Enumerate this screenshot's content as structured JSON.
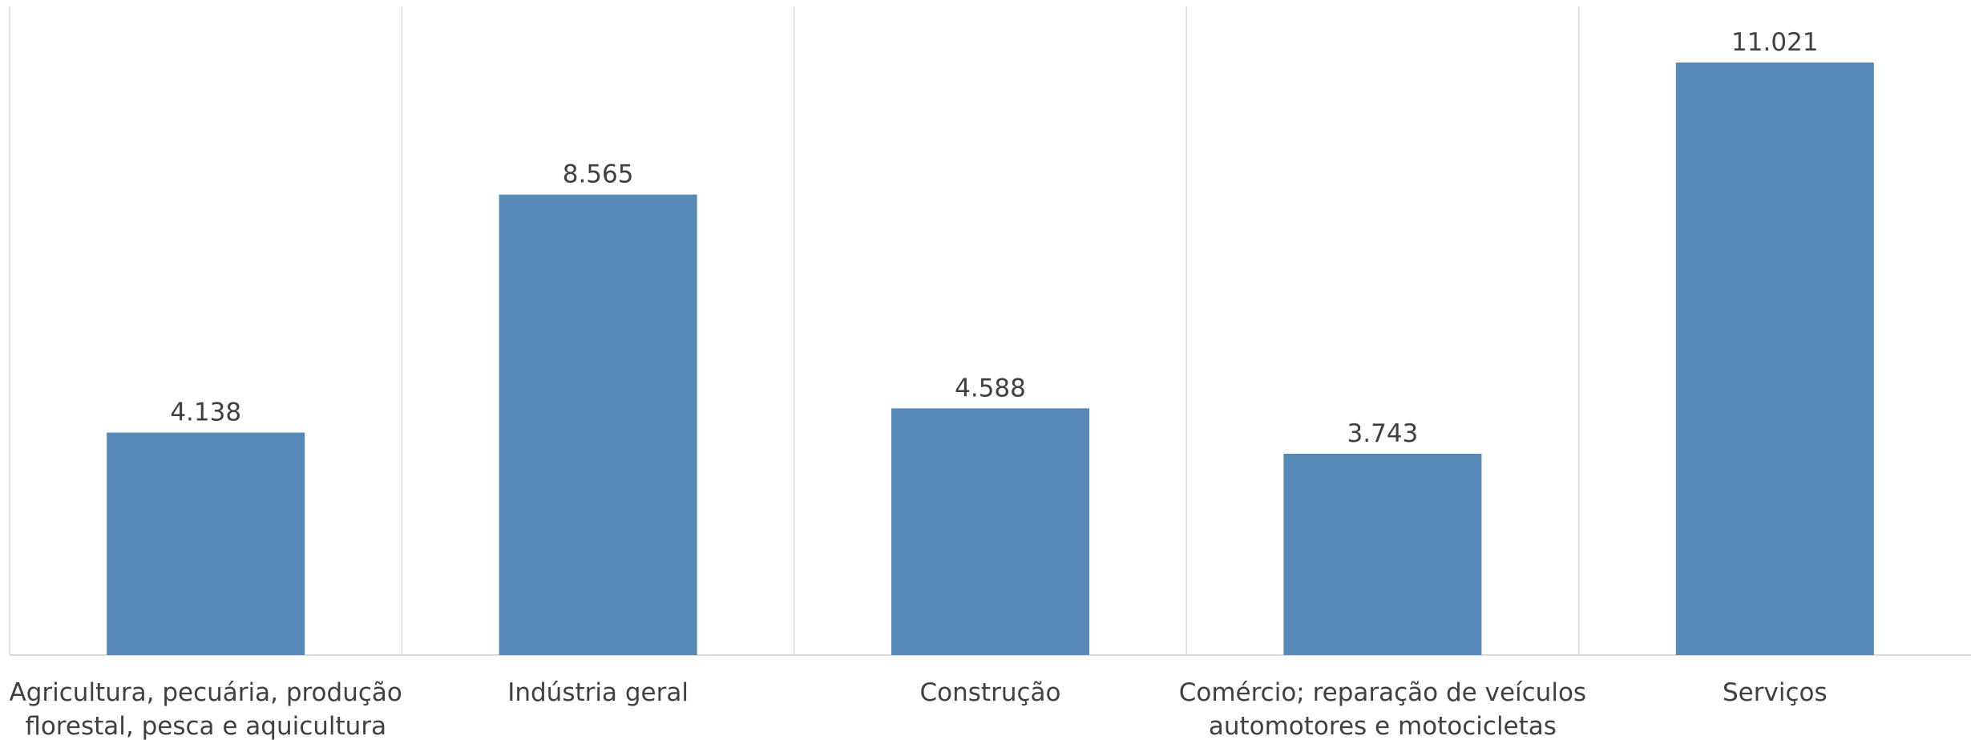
{
  "chart_data": {
    "type": "bar",
    "title": "",
    "xlabel": "",
    "ylabel": "",
    "categories": [
      [
        "Agricultura, pecuária, produção",
        "florestal, pesca e aquicultura"
      ],
      [
        "Indústria geral"
      ],
      [
        "Construção"
      ],
      [
        "Comércio; reparação de veículos",
        "automotores e motocicletas"
      ],
      [
        "Serviços"
      ]
    ],
    "values": [
      4138,
      8565,
      4588,
      3743,
      11021
    ],
    "data_labels": [
      "4.138",
      "8.565",
      "4.588",
      "3.743",
      "11.021"
    ],
    "ylim": [
      0,
      12000
    ],
    "grid": false,
    "legend": "none",
    "colors": {
      "bar": "#5689b8",
      "divider": "#d9d9d9",
      "text": "#404040"
    }
  }
}
